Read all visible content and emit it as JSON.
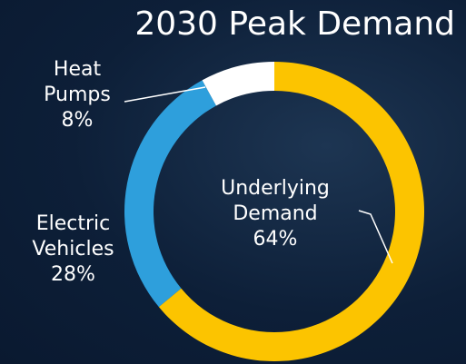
{
  "chart_data": {
    "type": "donut",
    "title": "2030 Peak Demand",
    "categories": [
      "Underlying Demand",
      "Electric Vehicles",
      "Heat Pumps"
    ],
    "values": [
      64,
      28,
      8
    ],
    "value_labels": [
      "64%",
      "28%",
      "8%"
    ],
    "colors": [
      "#fcc400",
      "#2e9fdc",
      "#ffffff"
    ]
  }
}
